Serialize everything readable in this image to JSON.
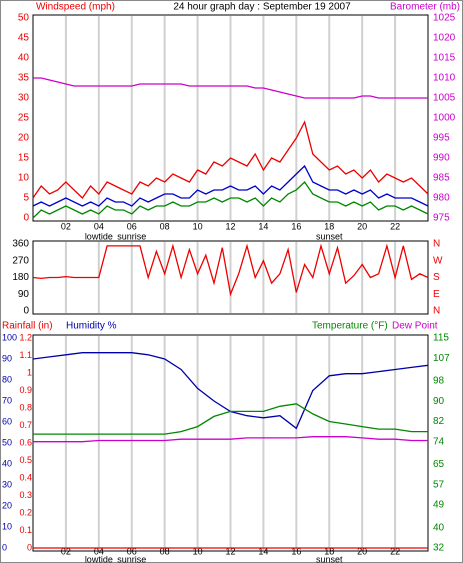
{
  "chart_data": [
    {
      "type": "line",
      "title": "24 hour graph day : September 19 2007",
      "y_label": "Windspeed (mph)",
      "y2_label": "Barometer (mb)",
      "x": [
        0,
        0.5,
        1,
        1.5,
        2,
        2.5,
        3,
        3.5,
        4,
        4.5,
        5,
        5.5,
        6,
        6.5,
        7,
        7.5,
        8,
        8.5,
        9,
        9.5,
        10,
        10.5,
        11,
        11.5,
        12,
        12.5,
        13,
        13.5,
        14,
        14.5,
        15,
        15.5,
        16,
        16.5,
        17,
        17.5,
        18,
        18.5,
        19,
        19.5,
        20,
        20.5,
        21,
        21.5,
        22,
        22.5,
        23,
        23.5,
        24
      ],
      "xlim": [
        0,
        24
      ],
      "xticks": [
        {
          "value": 2,
          "label": "02"
        },
        {
          "value": 4,
          "label": "04"
        },
        {
          "value": 6,
          "label": "06"
        },
        {
          "value": 8,
          "label": "08"
        },
        10,
        12,
        14,
        16,
        18,
        20,
        22
      ],
      "annotations": [
        {
          "text": "lowtide",
          "x": 4
        },
        {
          "text": "sunrise",
          "x": 6
        },
        {
          "text": "sunset",
          "x": 18
        }
      ],
      "ylim": [
        0,
        50
      ],
      "yticks": [
        0,
        5,
        10,
        15,
        20,
        25,
        30,
        35,
        40,
        45,
        50
      ],
      "y2lim": [
        975,
        1025
      ],
      "y2ticks": [
        975,
        980,
        985,
        990,
        995,
        1000,
        1005,
        1010,
        1015,
        1020,
        1025
      ],
      "grid": "x",
      "series": [
        {
          "color": "#ee0000",
          "values": [
            5,
            8,
            6,
            7,
            9,
            7,
            5,
            8,
            6,
            9,
            8,
            7,
            6,
            9,
            8,
            10,
            9,
            11,
            10,
            9,
            12,
            11,
            14,
            13,
            15,
            14,
            13,
            16,
            12,
            15,
            14,
            17,
            20,
            24,
            16,
            14,
            12,
            13,
            11,
            12,
            10,
            12,
            9,
            11,
            10,
            9,
            10,
            8,
            6
          ]
        },
        {
          "color": "#0000cc",
          "values": [
            3,
            4,
            3,
            4,
            5,
            4,
            3,
            4,
            3,
            5,
            4,
            4,
            3,
            5,
            4,
            5,
            6,
            6,
            5,
            5,
            7,
            6,
            7,
            7,
            8,
            7,
            7,
            8,
            6,
            8,
            7,
            9,
            11,
            13,
            9,
            8,
            7,
            7,
            6,
            7,
            6,
            7,
            5,
            6,
            5,
            5,
            5,
            4,
            3
          ]
        },
        {
          "color": "#008800",
          "values": [
            0,
            2,
            1,
            2,
            3,
            2,
            1,
            2,
            1,
            3,
            2,
            2,
            1,
            3,
            2,
            3,
            3,
            4,
            3,
            3,
            4,
            4,
            5,
            4,
            5,
            5,
            4,
            5,
            3,
            5,
            4,
            6,
            7,
            9,
            6,
            5,
            4,
            4,
            3,
            4,
            3,
            4,
            2,
            3,
            3,
            2,
            3,
            2,
            1
          ]
        },
        {
          "color": "#cc00cc",
          "axis": "y2",
          "values": [
            1010,
            1010,
            1009.5,
            1009,
            1008.5,
            1008,
            1008,
            1008,
            1008,
            1008,
            1008,
            1008,
            1008,
            1008.5,
            1008.5,
            1008.5,
            1008.5,
            1008.5,
            1008.5,
            1008,
            1008,
            1008,
            1008,
            1008,
            1008,
            1008,
            1008,
            1007.5,
            1007.5,
            1007,
            1006.5,
            1006,
            1005.5,
            1005,
            1005,
            1005,
            1005,
            1005,
            1005,
            1005,
            1005.5,
            1005.5,
            1005,
            1005,
            1005,
            1005,
            1005,
            1005,
            1005
          ]
        }
      ]
    },
    {
      "type": "line",
      "x": [
        0,
        0.5,
        1,
        1.5,
        2,
        2.5,
        3,
        3.5,
        4,
        4.5,
        5,
        5.5,
        6,
        6.5,
        7,
        7.5,
        8,
        8.5,
        9,
        9.5,
        10,
        10.5,
        11,
        11.5,
        12,
        12.5,
        13,
        13.5,
        14,
        14.5,
        15,
        15.5,
        16,
        16.5,
        17,
        17.5,
        18,
        18.5,
        19,
        19.5,
        20,
        20.5,
        21,
        21.5,
        22,
        22.5,
        23,
        23.5,
        24
      ],
      "xlim": [
        0,
        24
      ],
      "ylim": [
        0,
        360
      ],
      "yticks": [
        0,
        90,
        180,
        270,
        360
      ],
      "y2lim": [
        0,
        360
      ],
      "y2ticks": [
        {
          "value": 0,
          "label": "N"
        },
        {
          "value": 90,
          "label": "E"
        },
        {
          "value": 180,
          "label": "S"
        },
        {
          "value": 270,
          "label": "W"
        },
        {
          "value": 360,
          "label": "N"
        }
      ],
      "grid": "x",
      "series": [
        {
          "color": "#ee0000",
          "values": [
            180,
            175,
            180,
            180,
            185,
            180,
            180,
            180,
            180,
            350,
            350,
            350,
            350,
            350,
            180,
            320,
            200,
            350,
            180,
            330,
            200,
            300,
            150,
            340,
            90,
            200,
            350,
            180,
            270,
            150,
            200,
            330,
            100,
            250,
            180,
            350,
            200,
            340,
            150,
            190,
            250,
            180,
            200,
            350,
            180,
            350,
            170,
            200,
            180
          ]
        }
      ]
    },
    {
      "type": "line",
      "x": [
        0,
        1,
        2,
        3,
        4,
        5,
        6,
        7,
        8,
        9,
        10,
        11,
        12,
        13,
        14,
        15,
        16,
        17,
        18,
        19,
        20,
        21,
        22,
        23,
        24
      ],
      "xlim": [
        0,
        24
      ],
      "xticks": [
        {
          "value": 2,
          "label": "02"
        },
        {
          "value": 4,
          "label": "04"
        },
        {
          "value": 6,
          "label": "06"
        },
        {
          "value": 8,
          "label": "08"
        },
        10,
        12,
        14,
        16,
        18,
        20,
        22
      ],
      "annotations": [
        {
          "text": "lowtide",
          "x": 4
        },
        {
          "text": "sunrise",
          "x": 6
        },
        {
          "text": "sunset",
          "x": 18
        }
      ],
      "ylim": [
        0,
        1.2
      ],
      "yticks": [
        0,
        0.1,
        0.2,
        0.3,
        0.4,
        0.5,
        0.6,
        0.7,
        0.8,
        0.9,
        1,
        1.1,
        1.2
      ],
      "y3lim": [
        0,
        100
      ],
      "y3ticks": [
        0,
        10,
        20,
        30,
        40,
        50,
        60,
        70,
        80,
        90,
        100
      ],
      "y2lim": [
        32,
        115
      ],
      "y2ticks": [
        32,
        40,
        49,
        57,
        65,
        74,
        82,
        90,
        98,
        107,
        115
      ],
      "grid": "x",
      "series": [
        {
          "name": "Rainfall (in)",
          "color": "#ee0000",
          "values": [
            0,
            0,
            0,
            0,
            0,
            0,
            0,
            0,
            0,
            0,
            0,
            0,
            0,
            0,
            0,
            0,
            0,
            0,
            0,
            0,
            0,
            0,
            0,
            0,
            0
          ]
        },
        {
          "name": "Humidity %",
          "color": "#0000aa",
          "axis": "y3",
          "values": [
            90,
            91,
            92,
            93,
            93,
            93,
            93,
            92,
            90,
            85,
            76,
            70,
            65,
            63,
            62,
            63,
            57,
            75,
            82,
            83,
            83,
            84,
            85,
            86,
            87
          ]
        },
        {
          "name": "Temperature (°F)",
          "color": "#008800",
          "axis": "y2",
          "values": [
            77,
            77,
            77,
            77,
            77,
            77,
            77,
            77,
            77,
            78,
            80,
            84,
            86,
            86,
            86,
            88,
            89,
            85,
            82,
            81,
            80,
            79,
            79,
            78,
            78
          ]
        },
        {
          "name": "Dew Point",
          "color": "#cc00cc",
          "axis": "y2",
          "values": [
            74,
            74,
            74,
            74,
            74.5,
            74.5,
            74.5,
            74.5,
            74.5,
            75,
            75,
            75,
            75,
            75.5,
            75.5,
            75.5,
            75.5,
            76,
            76,
            76,
            75.5,
            75,
            75,
            74.5,
            74.5
          ]
        }
      ]
    }
  ]
}
